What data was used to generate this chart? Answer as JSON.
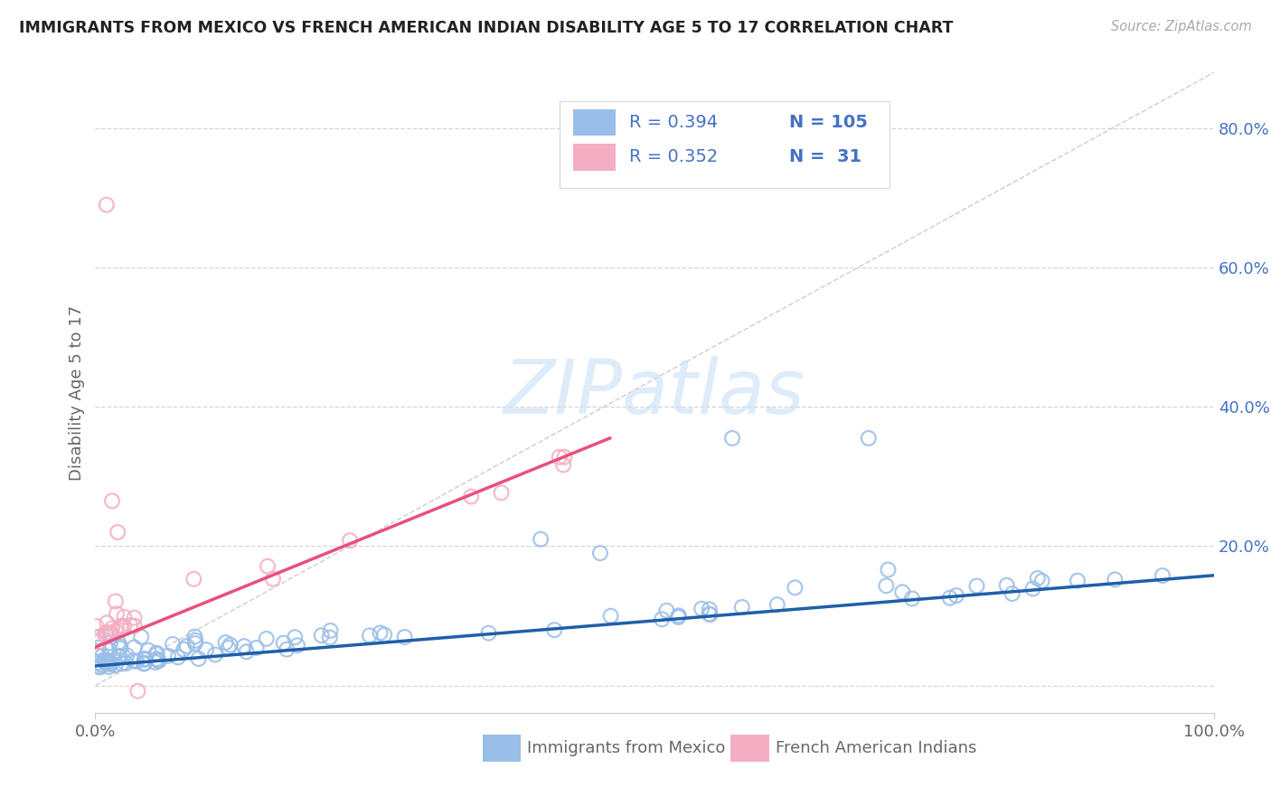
{
  "title": "IMMIGRANTS FROM MEXICO VS FRENCH AMERICAN INDIAN DISABILITY AGE 5 TO 17 CORRELATION CHART",
  "source": "Source: ZipAtlas.com",
  "ylabel": "Disability Age 5 to 17",
  "xlim": [
    0.0,
    1.0
  ],
  "ylim": [
    -0.04,
    0.88
  ],
  "blue_R": 0.394,
  "blue_N": 105,
  "pink_R": 0.352,
  "pink_N": 31,
  "blue_scatter_color": "#99bee8",
  "blue_line_color": "#1e5fa8",
  "pink_scatter_color": "#f4aec4",
  "pink_line_color": "#e8507a",
  "diag_line_color": "#cccccc",
  "grid_color": "#cccccc",
  "watermark_text": "ZIPatlas",
  "watermark_color": "#c8dff5",
  "title_color": "#222222",
  "right_axis_color": "#4472c4",
  "label_color": "#666666",
  "background": "#ffffff",
  "ytick_positions": [
    0.0,
    0.2,
    0.4,
    0.6,
    0.8
  ],
  "ytick_labels_right": [
    "",
    "20.0%",
    "40.0%",
    "60.0%",
    "80.0%"
  ],
  "xtick_positions": [
    0.0,
    1.0
  ],
  "xtick_labels": [
    "0.0%",
    "100.0%"
  ],
  "legend_label_blue": "Immigrants from Mexico",
  "legend_label_pink": "French American Indians",
  "blue_line_x": [
    0.0,
    1.0
  ],
  "blue_line_y": [
    0.028,
    0.158
  ],
  "pink_line_x": [
    0.0,
    0.46
  ],
  "pink_line_y": [
    0.055,
    0.355
  ]
}
